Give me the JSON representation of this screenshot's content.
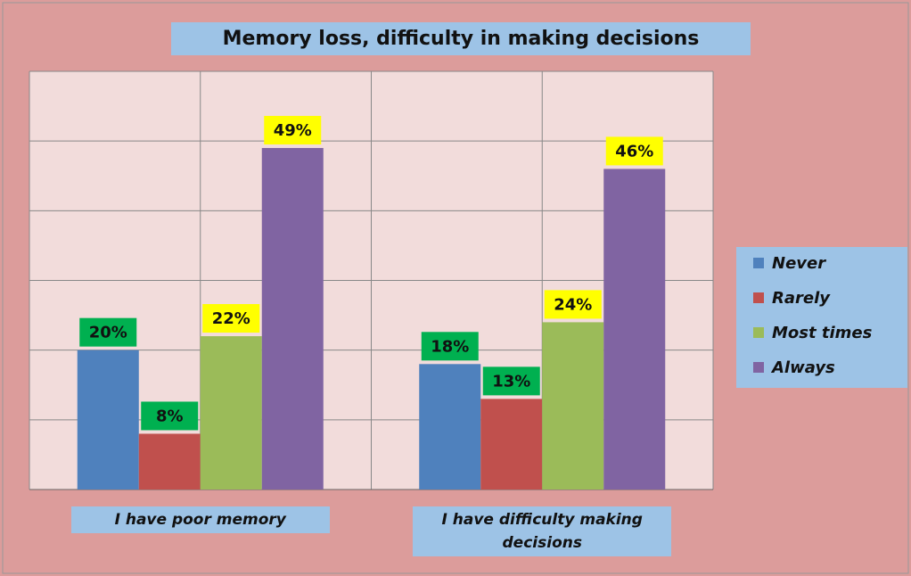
{
  "chart_data": {
    "type": "bar",
    "title": "Memory loss, difficulty in making decisions",
    "categories": [
      "I have poor memory",
      "I have difficulty making decisions"
    ],
    "series": [
      {
        "name": "Never",
        "color": "#4f81bd",
        "label_color": "#00b050",
        "values": [
          20,
          18
        ],
        "value_labels": [
          "20%",
          "18%"
        ]
      },
      {
        "name": "Rarely",
        "color": "#c0504d",
        "label_color": "#00b050",
        "values": [
          8,
          13
        ],
        "value_labels": [
          "8%",
          "13%"
        ]
      },
      {
        "name": "Most times",
        "color": "#9bbb59",
        "label_color": "#ffff00",
        "values": [
          22,
          24
        ],
        "value_labels": [
          "22%",
          "24%"
        ]
      },
      {
        "name": "Always",
        "color": "#8064a2",
        "label_color": "#ffff00",
        "values": [
          49,
          46
        ],
        "value_labels": [
          "49%",
          "46%"
        ]
      }
    ],
    "ylim": [
      0,
      60
    ],
    "yticks": [
      0,
      10,
      20,
      30,
      40,
      50,
      60
    ],
    "grid": true,
    "legend": "right"
  }
}
